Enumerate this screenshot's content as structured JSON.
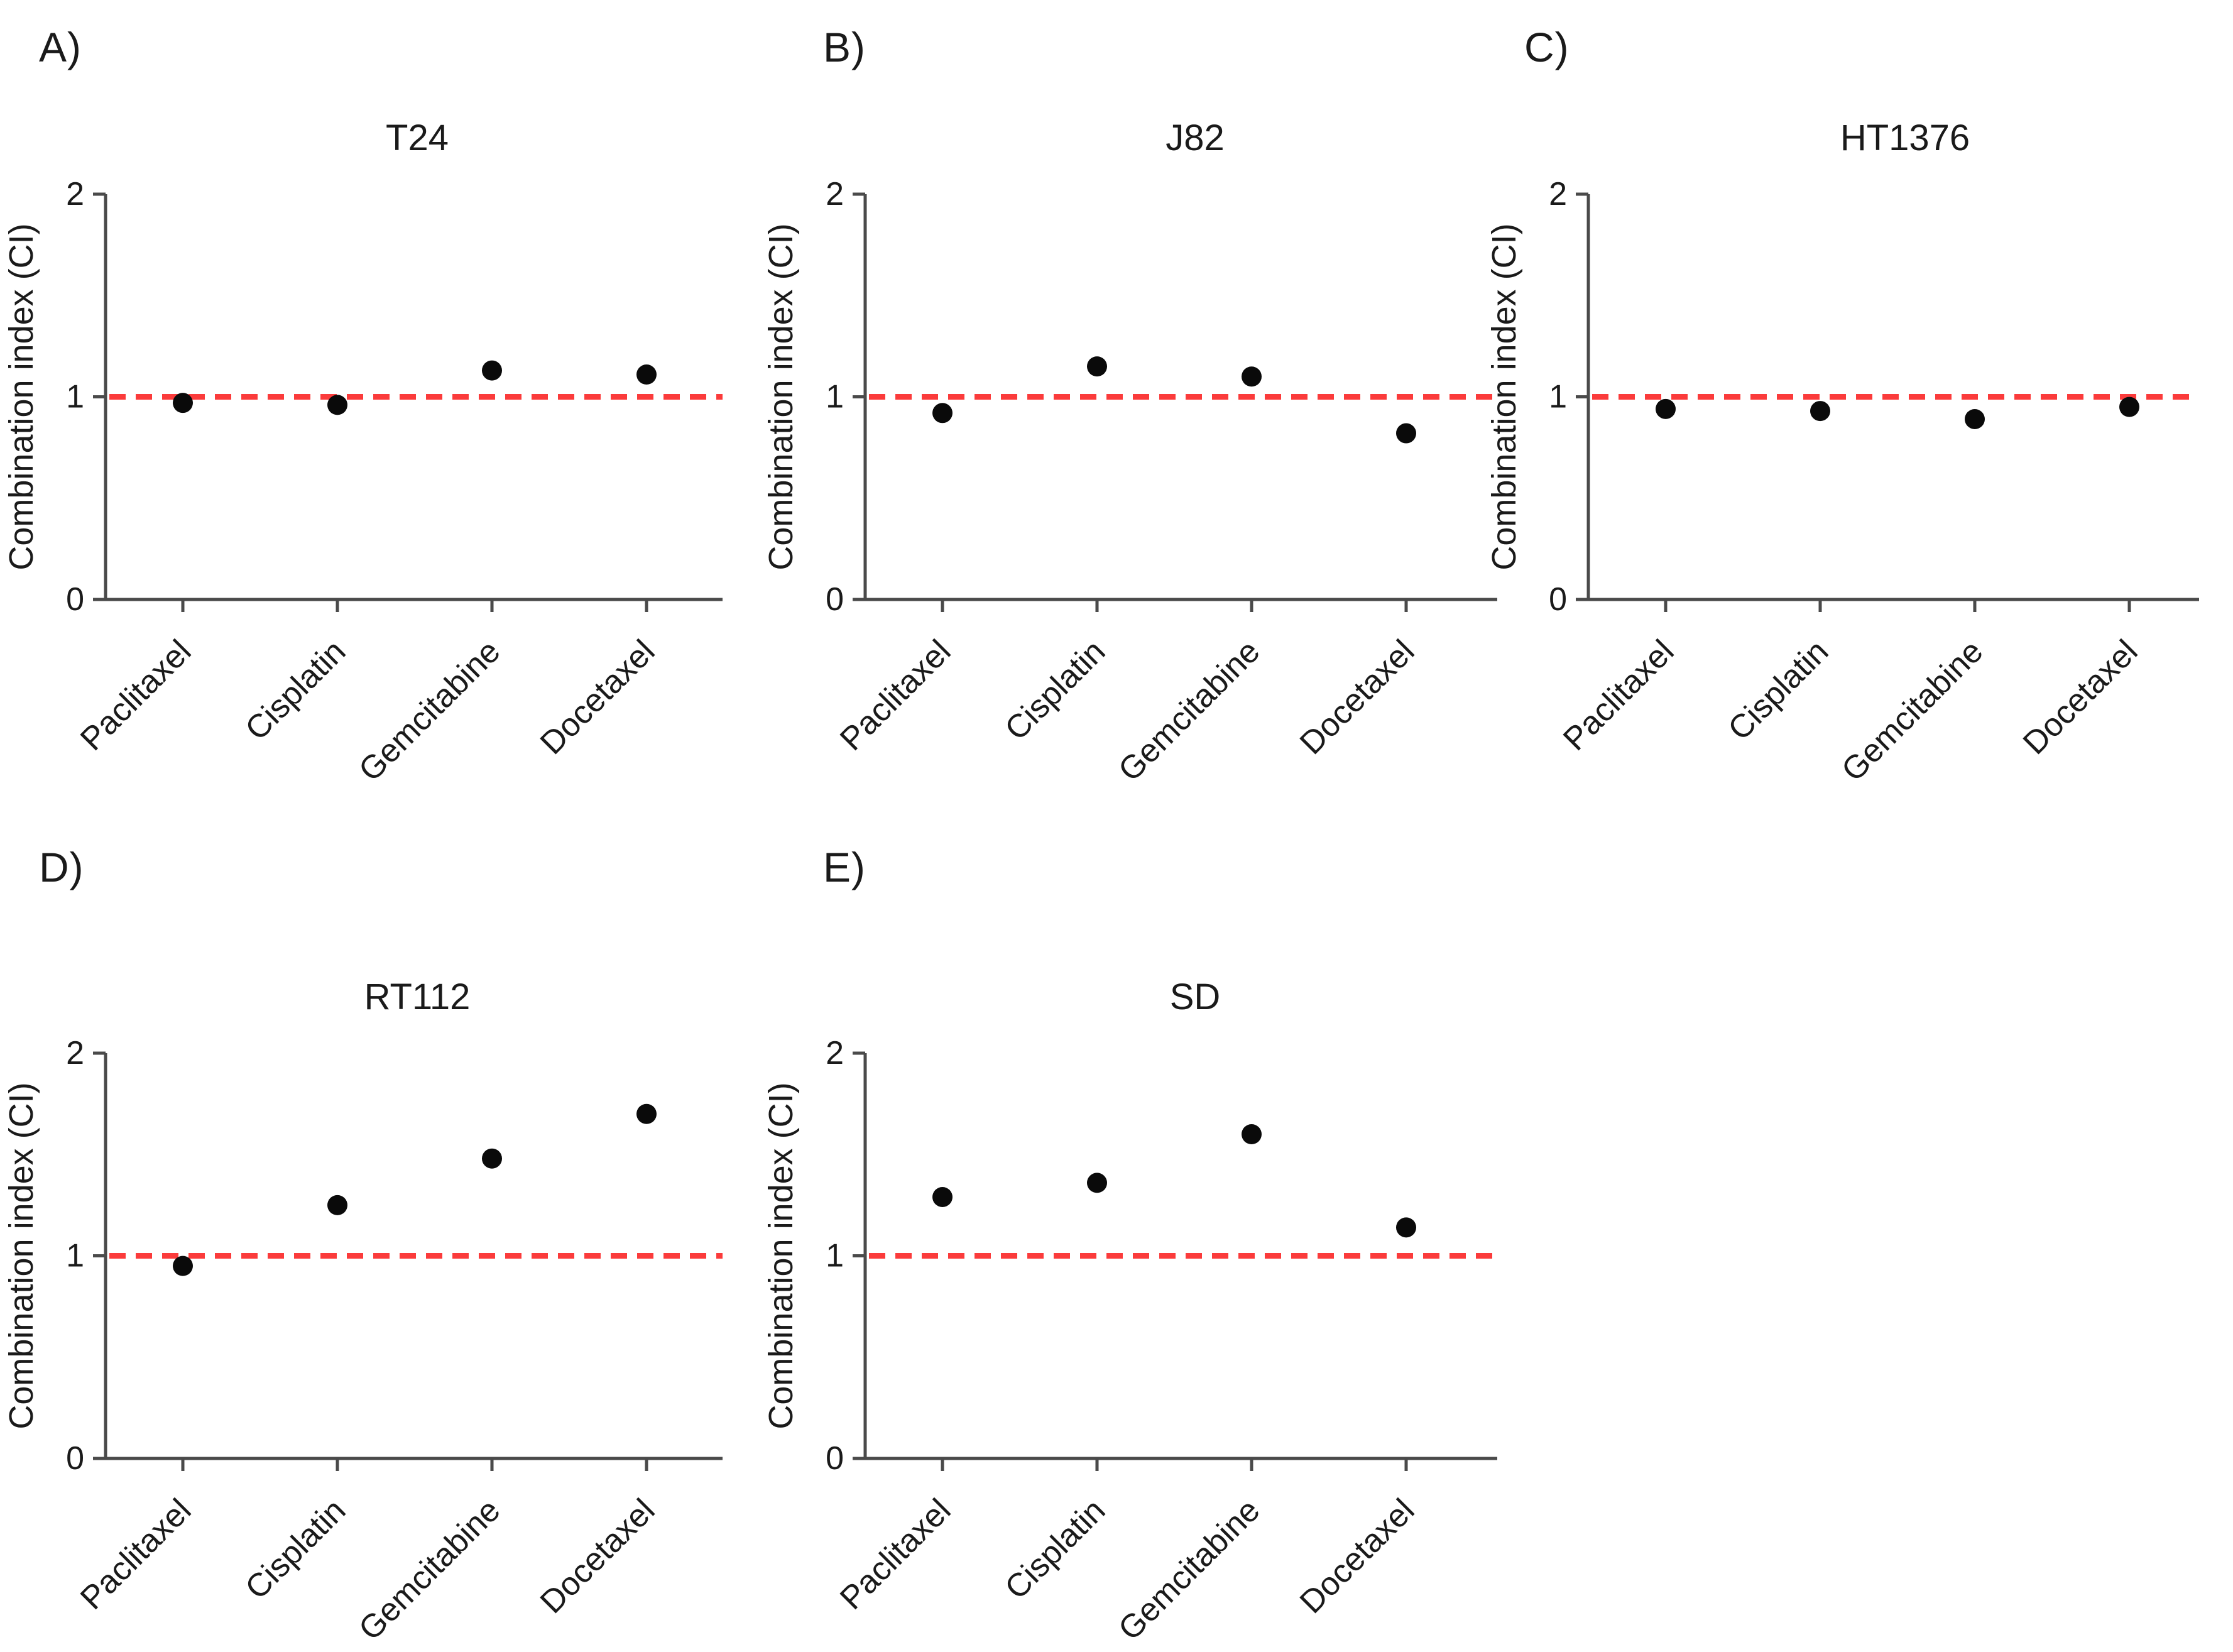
{
  "figure": {
    "background": "#ffffff",
    "reference_line_color": "#fb3b3b",
    "axis_color": "#4a4a4a",
    "marker_color": "#0a0a0a",
    "text_color": "#1a1a1a"
  },
  "shared_axis": {
    "ylabel": "Combination index (CI)",
    "yticks": [
      "0",
      "1",
      "2"
    ],
    "ylim": [
      0,
      2
    ],
    "reference_line_y": 1
  },
  "categories": [
    "Paclitaxel",
    "Cisplatin",
    "Gemcitabine",
    "Docetaxel"
  ],
  "chart_data": [
    {
      "type": "scatter",
      "panel_label": "A)",
      "title": "T24",
      "categories": [
        "Paclitaxel",
        "Cisplatin",
        "Gemcitabine",
        "Docetaxel"
      ],
      "values": [
        0.97,
        0.96,
        1.13,
        1.11
      ],
      "xlabel": "",
      "ylabel": "Combination index (CI)",
      "ylim": [
        0,
        2
      ],
      "yticks": [
        0,
        1,
        2
      ],
      "reference_line_y": 1,
      "reference_line_style": "dashed",
      "reference_line_color": "#fb3b3b",
      "marker": "filled-circle",
      "marker_color": "#0a0a0a",
      "grid": false,
      "legend": "none"
    },
    {
      "type": "scatter",
      "panel_label": "B)",
      "title": "J82",
      "categories": [
        "Paclitaxel",
        "Cisplatin",
        "Gemcitabine",
        "Docetaxel"
      ],
      "values": [
        0.92,
        1.15,
        1.1,
        0.82
      ],
      "xlabel": "",
      "ylabel": "Combination index (CI)",
      "ylim": [
        0,
        2
      ],
      "yticks": [
        0,
        1,
        2
      ],
      "reference_line_y": 1,
      "reference_line_style": "dashed",
      "reference_line_color": "#fb3b3b",
      "marker": "filled-circle",
      "marker_color": "#0a0a0a",
      "grid": false,
      "legend": "none"
    },
    {
      "type": "scatter",
      "panel_label": "C)",
      "title": "HT1376",
      "categories": [
        "Paclitaxel",
        "Cisplatin",
        "Gemcitabine",
        "Docetaxel"
      ],
      "values": [
        0.94,
        0.93,
        0.89,
        0.95
      ],
      "xlabel": "",
      "ylabel": "Combination index (CI)",
      "ylim": [
        0,
        2
      ],
      "yticks": [
        0,
        1,
        2
      ],
      "reference_line_y": 1,
      "reference_line_style": "dashed",
      "reference_line_color": "#fb3b3b",
      "marker": "filled-circle",
      "marker_color": "#0a0a0a",
      "grid": false,
      "legend": "none"
    },
    {
      "type": "scatter",
      "panel_label": "D)",
      "title": "RT112",
      "categories": [
        "Paclitaxel",
        "Cisplatin",
        "Gemcitabine",
        "Docetaxel"
      ],
      "values": [
        0.95,
        1.25,
        1.48,
        1.7
      ],
      "xlabel": "",
      "ylabel": "Combination index (CI)",
      "ylim": [
        0,
        2
      ],
      "yticks": [
        0,
        1,
        2
      ],
      "reference_line_y": 1,
      "reference_line_style": "dashed",
      "reference_line_color": "#fb3b3b",
      "marker": "filled-circle",
      "marker_color": "#0a0a0a",
      "grid": false,
      "legend": "none"
    },
    {
      "type": "scatter",
      "panel_label": "E)",
      "title": "SD",
      "categories": [
        "Paclitaxel",
        "Cisplatin",
        "Gemcitabine",
        "Docetaxel"
      ],
      "values": [
        1.29,
        1.36,
        1.6,
        1.14
      ],
      "xlabel": "",
      "ylabel": "Combination index (CI)",
      "ylim": [
        0,
        2
      ],
      "yticks": [
        0,
        1,
        2
      ],
      "reference_line_y": 1,
      "reference_line_style": "dashed",
      "reference_line_color": "#fb3b3b",
      "marker": "filled-circle",
      "marker_color": "#0a0a0a",
      "grid": false,
      "legend": "none"
    }
  ]
}
